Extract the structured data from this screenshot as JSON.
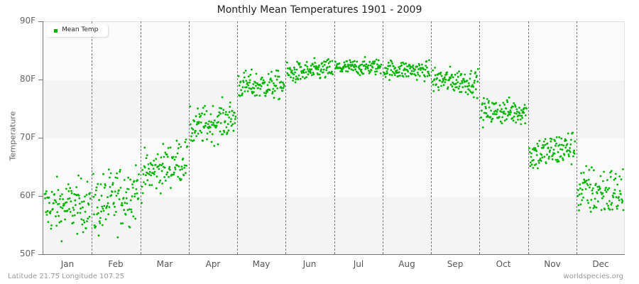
{
  "title": "Monthly Mean Temperatures 1901 - 2009",
  "legend": {
    "label": "Mean Temp",
    "color": "#00b300"
  },
  "footer": {
    "left": "Latitude 21.75 Longitude 107.25",
    "right": "worldspecies.org"
  },
  "colors": {
    "point": "#00b300",
    "band_dark": "#f4f4f4",
    "band_light": "#fafafa",
    "axis": "#777777"
  },
  "chart_data": {
    "type": "scatter",
    "title": "Monthly Mean Temperatures 1901 - 2009",
    "xlabel": "",
    "ylabel": "Temperature",
    "ylim": [
      50,
      90
    ],
    "yticks": [
      "50F",
      "60F",
      "70F",
      "80F",
      "90F"
    ],
    "categories": [
      "Jan",
      "Feb",
      "Mar",
      "Apr",
      "May",
      "Jun",
      "Jul",
      "Aug",
      "Sep",
      "Oct",
      "Nov",
      "Dec"
    ],
    "legend": [
      "Mean Temp"
    ],
    "legend_position": "top-left",
    "grid": "alternating horizontal bands, dashed vertical month separators",
    "years": [
      1901,
      2009
    ],
    "points_per_month": 109,
    "series": [
      {
        "name": "Mean Temp",
        "monthly_summary": [
          {
            "month": "Jan",
            "mean": 58.0,
            "trend_start": 58.0,
            "trend_end": 58.5,
            "min": 50.9,
            "max": 63.5,
            "spread": 2.3
          },
          {
            "month": "Feb",
            "mean": 59.5,
            "trend_start": 58.0,
            "trend_end": 61.0,
            "min": 51.0,
            "max": 66.5,
            "spread": 2.7
          },
          {
            "month": "Mar",
            "mean": 65.0,
            "trend_start": 63.5,
            "trend_end": 66.5,
            "min": 58.8,
            "max": 69.7,
            "spread": 1.9
          },
          {
            "month": "Apr",
            "mean": 72.5,
            "trend_start": 71.5,
            "trend_end": 73.5,
            "min": 66.8,
            "max": 77.7,
            "spread": 1.6
          },
          {
            "month": "May",
            "mean": 79.3,
            "trend_start": 79.0,
            "trend_end": 79.0,
            "min": 75.5,
            "max": 83.2,
            "spread": 1.2
          },
          {
            "month": "Jun",
            "mean": 81.5,
            "trend_start": 81.0,
            "trend_end": 81.8,
            "min": 78.5,
            "max": 84.3,
            "spread": 0.9
          },
          {
            "month": "Jul",
            "mean": 82.0,
            "trend_start": 82.0,
            "trend_end": 82.2,
            "min": 80.0,
            "max": 84.5,
            "spread": 0.7
          },
          {
            "month": "Aug",
            "mean": 81.5,
            "trend_start": 81.8,
            "trend_end": 81.5,
            "min": 79.5,
            "max": 84.3,
            "spread": 0.8
          },
          {
            "month": "Sep",
            "mean": 79.7,
            "trend_start": 80.0,
            "trend_end": 79.5,
            "min": 76.5,
            "max": 83.5,
            "spread": 1.1
          },
          {
            "month": "Oct",
            "mean": 74.3,
            "trend_start": 74.5,
            "trend_end": 74.5,
            "min": 70.5,
            "max": 77.7,
            "spread": 1.1
          },
          {
            "month": "Nov",
            "mean": 67.5,
            "trend_start": 67.0,
            "trend_end": 68.5,
            "min": 63.0,
            "max": 71.8,
            "spread": 1.5
          },
          {
            "month": "Dec",
            "mean": 60.5,
            "trend_start": 61.0,
            "trend_end": 60.5,
            "min": 54.0,
            "max": 68.2,
            "spread": 2.2
          }
        ]
      }
    ]
  },
  "axes": {
    "y_title": "Temperature",
    "y_labels": [
      {
        "text": "90F",
        "value": 90
      },
      {
        "text": "80F",
        "value": 80
      },
      {
        "text": "70F",
        "value": 70
      },
      {
        "text": "60F",
        "value": 60
      },
      {
        "text": "50F",
        "value": 50
      }
    ],
    "x_labels": [
      "Jan",
      "Feb",
      "Mar",
      "Apr",
      "May",
      "Jun",
      "Jul",
      "Aug",
      "Sep",
      "Oct",
      "Nov",
      "Dec"
    ]
  }
}
